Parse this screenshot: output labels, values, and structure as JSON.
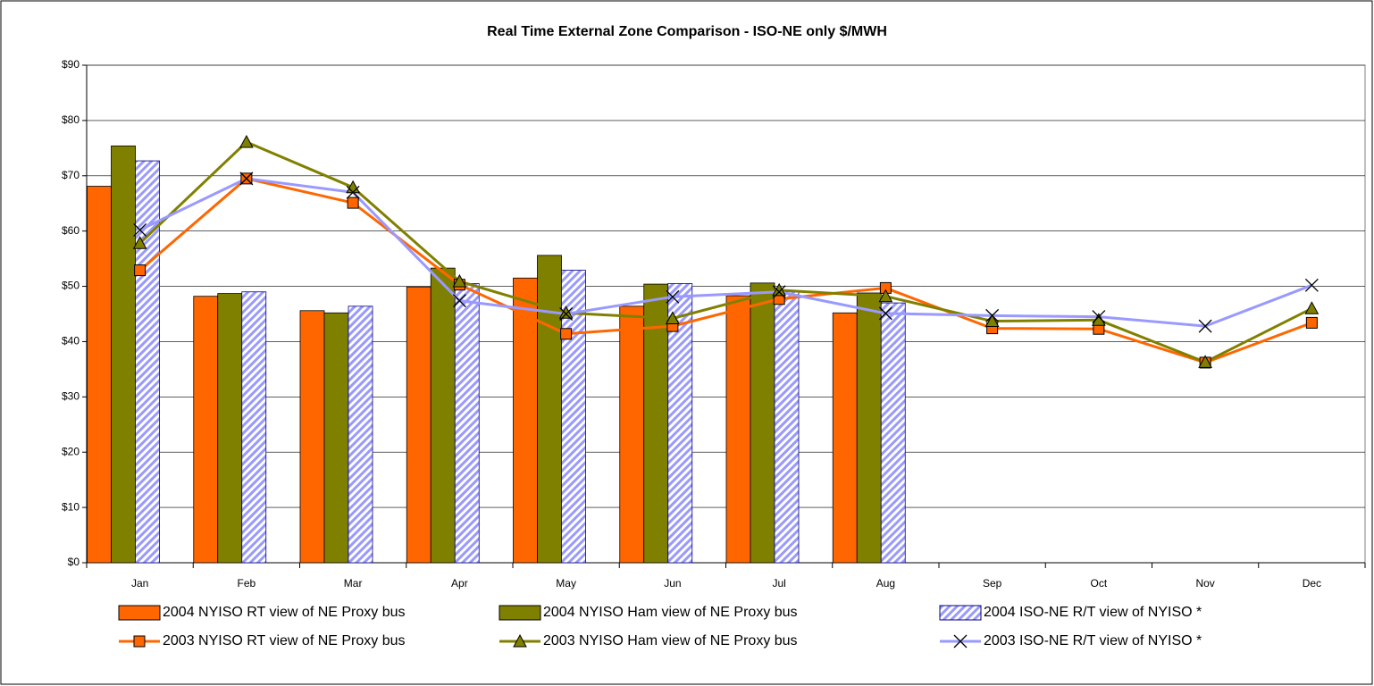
{
  "chart_data": {
    "type": "bar",
    "title": "Real Time External Zone Comparison - ISO-NE only $/MWH",
    "categories": [
      "Jan",
      "Feb",
      "Mar",
      "Apr",
      "May",
      "Jun",
      "Jul",
      "Aug",
      "Sep",
      "Oct",
      "Nov",
      "Dec"
    ],
    "series": [
      {
        "name": "2004 NYISO RT view of NE Proxy bus",
        "kind": "bar",
        "color": "#ff6600",
        "values": [
          68.1,
          48.2,
          45.6,
          49.9,
          51.5,
          46.4,
          48.3,
          45.2,
          null,
          null,
          null,
          null
        ]
      },
      {
        "name": "2004 NYISO Ham view of NE Proxy bus",
        "kind": "bar",
        "color": "#808000",
        "values": [
          75.4,
          48.7,
          45.2,
          53.3,
          55.6,
          50.4,
          50.6,
          48.8,
          null,
          null,
          null,
          null
        ]
      },
      {
        "name": "2004 ISO-NE R/T view of NYISO *",
        "kind": "bar",
        "color": "#9999ff",
        "fill": "hatch",
        "values": [
          72.7,
          49.0,
          46.4,
          50.5,
          52.9,
          50.5,
          49.0,
          47.0,
          null,
          null,
          null,
          null
        ]
      },
      {
        "name": "2003 NYISO RT view of NE Proxy bus",
        "kind": "line",
        "color": "#ff6600",
        "marker": "square",
        "values": [
          52.9,
          69.5,
          65.1,
          50.3,
          41.4,
          42.8,
          47.7,
          49.7,
          42.4,
          42.3,
          36.2,
          43.4
        ]
      },
      {
        "name": "2003 NYISO Ham view of NE Proxy bus",
        "kind": "line",
        "color": "#808000",
        "marker": "triangle",
        "values": [
          57.8,
          76.1,
          67.9,
          50.9,
          45.2,
          44.2,
          49.3,
          48.2,
          43.7,
          43.9,
          36.3,
          46.0
        ]
      },
      {
        "name": "2003 ISO-NE R/T view of NYISO *",
        "kind": "line",
        "color": "#9999ff",
        "marker": "x",
        "values": [
          60.2,
          69.5,
          67.0,
          47.4,
          45.0,
          48.1,
          49.0,
          45.1,
          44.7,
          44.5,
          42.8,
          50.2
        ]
      }
    ],
    "ylim": [
      0,
      90
    ],
    "yticks": [
      {
        "value": 0,
        "label": "$0"
      },
      {
        "value": 10,
        "label": "$10"
      },
      {
        "value": 20,
        "label": "$20"
      },
      {
        "value": 30,
        "label": "$30"
      },
      {
        "value": 40,
        "label": "$40"
      },
      {
        "value": 50,
        "label": "$50"
      },
      {
        "value": 60,
        "label": "$60"
      },
      {
        "value": 70,
        "label": "$70"
      },
      {
        "value": 80,
        "label": "$80"
      },
      {
        "value": 90,
        "label": "$90"
      }
    ],
    "grid": true,
    "legend": "bottom"
  }
}
